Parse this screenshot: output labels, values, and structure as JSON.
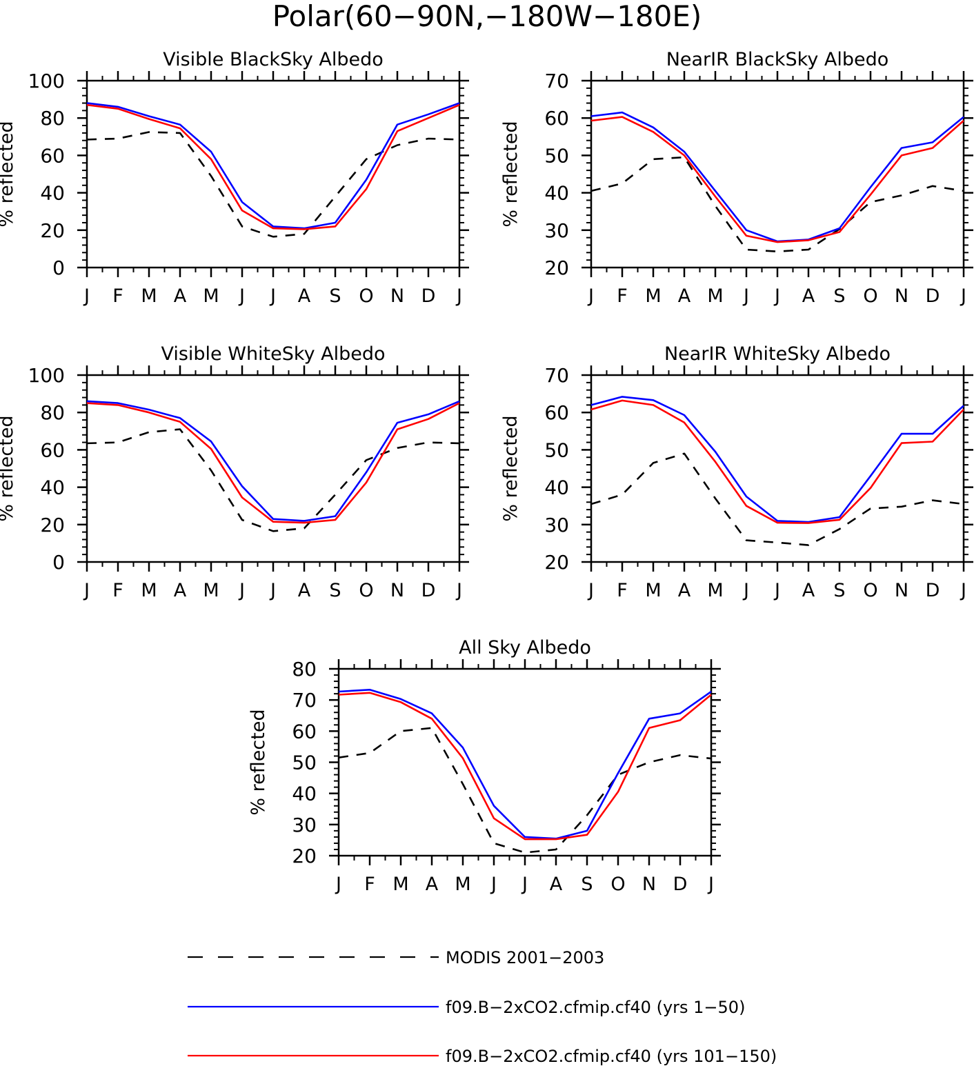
{
  "page_title": "Polar(60−90N,−180W−180E)",
  "colors": {
    "obs": "#000000",
    "run1": "#0000ff",
    "run2": "#ff0000",
    "axis": "#000000"
  },
  "legend": {
    "items": [
      {
        "label": "MODIS 2001−2003",
        "color": "#000000",
        "style": "dashed"
      },
      {
        "label": "f09.B−2xCO2.cfmip.cf40 (yrs 1−50)",
        "color": "#0000ff",
        "style": "solid"
      },
      {
        "label": "f09.B−2xCO2.cfmip.cf40 (yrs 101−150)",
        "color": "#ff0000",
        "style": "solid"
      }
    ]
  },
  "chart_data": [
    {
      "type": "line",
      "title": "Visible BlackSky Albedo",
      "ylabel": "% reflected",
      "xlabel": "",
      "categories": [
        "J",
        "F",
        "M",
        "A",
        "M",
        "J",
        "J",
        "A",
        "S",
        "O",
        "N",
        "D",
        "J"
      ],
      "ylim": [
        0,
        100
      ],
      "yticks": [
        0,
        20,
        40,
        60,
        80,
        100
      ],
      "series": [
        {
          "name": "MODIS 2001−2003",
          "values": [
            68.5,
            69,
            72.5,
            72,
            49,
            22,
            16.5,
            18,
            38,
            58,
            65.5,
            69,
            68.5
          ]
        },
        {
          "name": "f09.B−2xCO2.cfmip.cf40 (yrs 1−50)",
          "values": [
            88,
            86,
            81,
            76.5,
            62,
            35,
            22,
            21,
            24,
            47,
            76.5,
            82,
            88
          ]
        },
        {
          "name": "f09.B−2xCO2.cfmip.cf40 (yrs 101−150)",
          "values": [
            87,
            85,
            79.5,
            74.5,
            58,
            30.5,
            21,
            20.5,
            22,
            42,
            73,
            80,
            87
          ]
        }
      ]
    },
    {
      "type": "line",
      "title": "NearIR BlackSky Albedo",
      "ylabel": "% reflected",
      "xlabel": "",
      "categories": [
        "J",
        "F",
        "M",
        "A",
        "M",
        "J",
        "J",
        "A",
        "S",
        "O",
        "N",
        "D",
        "J"
      ],
      "ylim": [
        20,
        70
      ],
      "yticks": [
        20,
        30,
        40,
        50,
        60,
        70
      ],
      "series": [
        {
          "name": "MODIS 2001−2003",
          "values": [
            40.5,
            42.5,
            49,
            49.5,
            36.5,
            24.8,
            24.3,
            24.8,
            30.3,
            37.5,
            39.3,
            41.8,
            40.5
          ]
        },
        {
          "name": "f09.B−2xCO2.cfmip.cf40 (yrs 1−50)",
          "values": [
            60.5,
            61.5,
            57.5,
            51,
            40.5,
            30,
            27,
            27.5,
            30.5,
            41.5,
            52,
            53.5,
            60.3
          ]
        },
        {
          "name": "f09.B−2xCO2.cfmip.cf40 (yrs 101−150)",
          "values": [
            59.3,
            60.3,
            56.3,
            50,
            39,
            28.5,
            26.8,
            27.3,
            29.5,
            39.5,
            50,
            52,
            59.3
          ]
        }
      ]
    },
    {
      "type": "line",
      "title": "Visible WhiteSky Albedo",
      "ylabel": "% reflected",
      "xlabel": "",
      "categories": [
        "J",
        "F",
        "M",
        "A",
        "M",
        "J",
        "J",
        "A",
        "S",
        "O",
        "N",
        "D",
        "J"
      ],
      "ylim": [
        0,
        100
      ],
      "yticks": [
        0,
        20,
        40,
        60,
        80,
        100
      ],
      "series": [
        {
          "name": "MODIS 2001−2003",
          "values": [
            63.5,
            64,
            69.5,
            71,
            49,
            22.5,
            16.5,
            18,
            36,
            54.5,
            61,
            64,
            63.5
          ]
        },
        {
          "name": "f09.B−2xCO2.cfmip.cf40 (yrs 1−50)",
          "values": [
            86,
            85,
            81.5,
            77,
            64.5,
            40.5,
            23,
            22,
            24.5,
            48,
            74.5,
            79,
            86
          ]
        },
        {
          "name": "f09.B−2xCO2.cfmip.cf40 (yrs 101−150)",
          "values": [
            85,
            84,
            80,
            75,
            60.5,
            34.5,
            21.5,
            21,
            22.5,
            42.5,
            71,
            76.5,
            85
          ]
        }
      ]
    },
    {
      "type": "line",
      "title": "NearIR WhiteSky Albedo",
      "ylabel": "% reflected",
      "xlabel": "",
      "categories": [
        "J",
        "F",
        "M",
        "A",
        "M",
        "J",
        "J",
        "A",
        "S",
        "O",
        "N",
        "D",
        "J"
      ],
      "ylim": [
        20,
        70
      ],
      "yticks": [
        20,
        30,
        40,
        50,
        60,
        70
      ],
      "series": [
        {
          "name": "MODIS 2001−2003",
          "values": [
            35.5,
            38,
            46.5,
            49,
            37,
            25.8,
            25.2,
            24.5,
            28.8,
            34.3,
            34.8,
            36.5,
            35.5
          ]
        },
        {
          "name": "f09.B−2xCO2.cfmip.cf40 (yrs 1−50)",
          "values": [
            62,
            64.2,
            63.3,
            59.3,
            49.5,
            37.5,
            31,
            30.7,
            32,
            43,
            54.3,
            54.3,
            61.8
          ]
        },
        {
          "name": "f09.B−2xCO2.cfmip.cf40 (yrs 101−150)",
          "values": [
            60.8,
            63.2,
            62,
            57.3,
            46.8,
            35,
            30.5,
            30.4,
            31.3,
            39.8,
            51.8,
            52.2,
            60.8
          ]
        }
      ]
    },
    {
      "type": "line",
      "title": "All Sky Albedo",
      "ylabel": "% reflected",
      "xlabel": "",
      "categories": [
        "J",
        "F",
        "M",
        "A",
        "M",
        "J",
        "J",
        "A",
        "S",
        "O",
        "N",
        "D",
        "J"
      ],
      "ylim": [
        20,
        80
      ],
      "yticks": [
        20,
        30,
        40,
        50,
        60,
        70,
        80
      ],
      "series": [
        {
          "name": "MODIS 2001−2003",
          "values": [
            51.5,
            53,
            60,
            61,
            43,
            24,
            21,
            22,
            33,
            46,
            50,
            52.3,
            51.2
          ]
        },
        {
          "name": "f09.B−2xCO2.cfmip.cf40 (yrs 1−50)",
          "values": [
            72.7,
            73.3,
            70.3,
            65.7,
            54.7,
            36,
            26,
            25.5,
            28,
            46.5,
            64,
            65.7,
            72.7
          ]
        },
        {
          "name": "f09.B−2xCO2.cfmip.cf40 (yrs 101−150)",
          "values": [
            71.7,
            72.3,
            69.3,
            64,
            51.3,
            32,
            25.3,
            25.3,
            26.7,
            40.5,
            61,
            63.5,
            71.7
          ]
        }
      ]
    }
  ]
}
